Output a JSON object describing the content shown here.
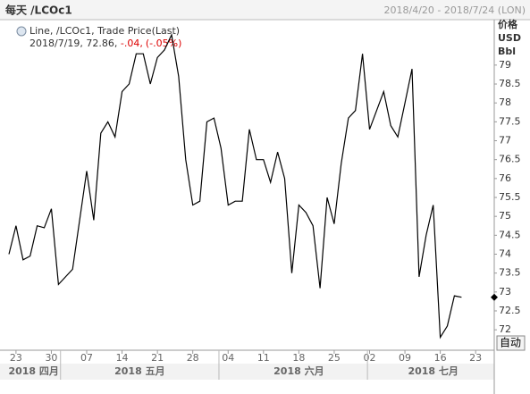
{
  "header": {
    "title": "每天 /LCOc1",
    "range": "2018/4/20 - 2018/7/24 (LON)"
  },
  "chart_data": {
    "type": "line",
    "legend": {
      "series_label": "Line, /LCOc1, Trade Price(Last)",
      "date": "2018/7/19",
      "last": "72.86",
      "change": "-.04,",
      "change_pct": "(-.05%)"
    },
    "unit_labels": [
      "价格",
      "USD",
      "Bbl"
    ],
    "series": [
      {
        "name": "/LCOc1",
        "color": "#000000",
        "values": [
          74.0,
          74.75,
          73.85,
          73.95,
          74.75,
          74.7,
          75.2,
          73.2,
          73.4,
          73.6,
          74.9,
          76.2,
          74.9,
          77.2,
          77.5,
          77.1,
          78.3,
          78.5,
          79.3,
          79.3,
          78.5,
          79.2,
          79.4,
          79.8,
          78.7,
          76.5,
          75.3,
          75.4,
          77.5,
          77.6,
          76.8,
          75.3,
          75.4,
          75.4,
          77.3,
          76.5,
          76.5,
          75.9,
          76.7,
          76.0,
          73.5,
          75.3,
          75.1,
          74.75,
          73.1,
          75.5,
          74.8,
          76.4,
          77.6,
          77.8,
          79.3,
          77.3,
          77.8,
          78.3,
          77.4,
          77.1,
          78.0,
          78.9,
          73.4,
          74.5,
          75.3,
          71.8,
          72.1,
          72.9,
          72.86
        ]
      }
    ],
    "xlim": [
      -0.25,
      68
    ],
    "xticks": [
      {
        "value": 1,
        "label": "23"
      },
      {
        "value": 6,
        "label": "30"
      },
      {
        "value": 11,
        "label": "07"
      },
      {
        "value": 16,
        "label": "14"
      },
      {
        "value": 21,
        "label": "21"
      },
      {
        "value": 26,
        "label": "28"
      },
      {
        "value": 31,
        "label": "04"
      },
      {
        "value": 36,
        "label": "11"
      },
      {
        "value": 41,
        "label": "18"
      },
      {
        "value": 46,
        "label": "25"
      },
      {
        "value": 51,
        "label": "02"
      },
      {
        "value": 56,
        "label": "09"
      },
      {
        "value": 61,
        "label": "16"
      },
      {
        "value": 66,
        "label": "23"
      }
    ],
    "month_labels": [
      {
        "value": 3.5,
        "label": "2018 四月"
      },
      {
        "value": 18.5,
        "label": "2018 五月"
      },
      {
        "value": 41,
        "label": "2018 六月"
      },
      {
        "value": 60,
        "label": "2018 七月"
      }
    ],
    "month_breaks": [
      7.3,
      29.7,
      50.7
    ],
    "ylim": [
      71.46,
      80.06
    ],
    "yticks": [
      72,
      72.5,
      73,
      73.5,
      74,
      74.5,
      75,
      75.5,
      76,
      76.5,
      77,
      77.5,
      78,
      78.5,
      79
    ],
    "button": "自动"
  }
}
